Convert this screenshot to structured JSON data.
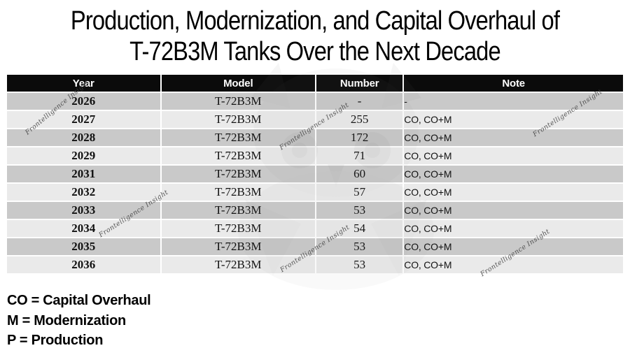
{
  "title": {
    "line1": "Production, Modernization, and Capital Overhaul of",
    "line2": "T-72B3M Tanks Over the Next Decade"
  },
  "table": {
    "columns": [
      "Year",
      "Model",
      "Number",
      "Note"
    ],
    "rows": [
      [
        "2026",
        "T-72B3M",
        "-",
        "-"
      ],
      [
        "2027",
        "T-72B3M",
        "255",
        "CO, CO+M"
      ],
      [
        "2028",
        "T-72B3M",
        "172",
        "CO, CO+M"
      ],
      [
        "2029",
        "T-72B3M",
        "71",
        "CO, CO+M"
      ],
      [
        "2031",
        "T-72B3M",
        "60",
        "CO, CO+M"
      ],
      [
        "2032",
        "T-72B3M",
        "57",
        "CO, CO+M"
      ],
      [
        "2033",
        "T-72B3M",
        "53",
        "CO, CO+M"
      ],
      [
        "2034",
        "T-72B3M",
        "54",
        "CO, CO+M"
      ],
      [
        "2035",
        "T-72B3M",
        "53",
        "CO, CO+M"
      ],
      [
        "2036",
        "T-72B3M",
        "53",
        "CO, CO+M"
      ]
    ]
  },
  "legend": {
    "lines": [
      "CO = Capital Overhaul",
      "M = Modernization",
      "P = Production"
    ]
  },
  "watermark": {
    "text": "Frontelligence Insight",
    "logo": "owl-logo"
  },
  "colors": {
    "header_bg": "#0b0b0b",
    "row_dark": "#c9c9c9",
    "row_light": "#eaeaea",
    "header_text": "#ffffff"
  },
  "chart_data": {
    "type": "table",
    "title": "Production, Modernization, and Capital Overhaul of T-72B3M Tanks Over the Next Decade",
    "columns": [
      "Year",
      "Model",
      "Number",
      "Note"
    ],
    "rows": [
      [
        "2026",
        "T-72B3M",
        "-",
        "-"
      ],
      [
        "2027",
        "T-72B3M",
        "255",
        "CO, CO+M"
      ],
      [
        "2028",
        "T-72B3M",
        "172",
        "CO, CO+M"
      ],
      [
        "2029",
        "T-72B3M",
        "71",
        "CO, CO+M"
      ],
      [
        "2031",
        "T-72B3M",
        "60",
        "CO, CO+M"
      ],
      [
        "2032",
        "T-72B3M",
        "57",
        "CO, CO+M"
      ],
      [
        "2033",
        "T-72B3M",
        "53",
        "CO, CO+M"
      ],
      [
        "2034",
        "T-72B3M",
        "54",
        "CO, CO+M"
      ],
      [
        "2035",
        "T-72B3M",
        "53",
        "CO, CO+M"
      ],
      [
        "2036",
        "T-72B3M",
        "53",
        "CO, CO+M"
      ]
    ],
    "abbreviations": [
      "CO = Capital Overhaul",
      "M = Modernization",
      "P = Production"
    ]
  }
}
